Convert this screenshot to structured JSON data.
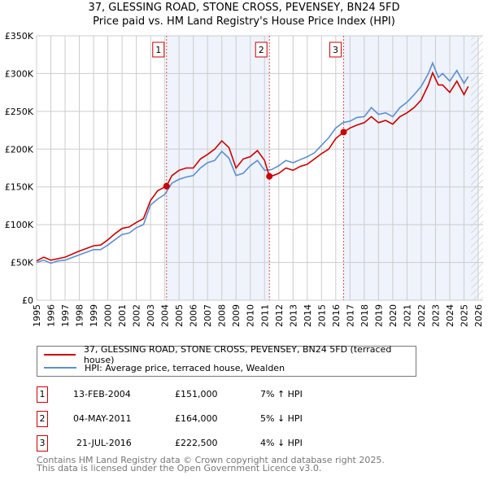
{
  "chart_data": {
    "type": "line",
    "title": "37, GLESSING ROAD, STONE CROSS, PEVENSEY, BN24 5FD",
    "subtitle": "Price paid vs. HM Land Registry's House Price Index (HPI)",
    "xlim": [
      1995,
      2026
    ],
    "ylim": [
      0,
      350000
    ],
    "x_ticks": [
      "1995",
      "1996",
      "1997",
      "1998",
      "1999",
      "2000",
      "2001",
      "2002",
      "2003",
      "2004",
      "2005",
      "2006",
      "2007",
      "2008",
      "2009",
      "2010",
      "2011",
      "2012",
      "2013",
      "2014",
      "2015",
      "2016",
      "2017",
      "2018",
      "2019",
      "2020",
      "2021",
      "2022",
      "2023",
      "2024",
      "2025",
      "2026"
    ],
    "y_ticks": [
      {
        "v": 0,
        "label": "£0"
      },
      {
        "v": 50000,
        "label": "£50K"
      },
      {
        "v": 100000,
        "label": "£100K"
      },
      {
        "v": 150000,
        "label": "£150K"
      },
      {
        "v": 200000,
        "label": "£200K"
      },
      {
        "v": 250000,
        "label": "£250K"
      },
      {
        "v": 300000,
        "label": "£300K"
      },
      {
        "v": 350000,
        "label": "£350K"
      }
    ],
    "grid": true,
    "series": [
      {
        "name": "37, GLESSING ROAD, STONE CROSS, PEVENSEY, BN24 5FD (terraced house)",
        "color": "#cc0000",
        "x": [
          1995,
          1995.5,
          1996,
          1997,
          1998,
          1999,
          1999.5,
          2000,
          2000.5,
          2001,
          2001.5,
          2002,
          2002.5,
          2003,
          2003.5,
          2004.12,
          2004.5,
          2005,
          2005.5,
          2006,
          2006.5,
          2007,
          2007.5,
          2008,
          2008.5,
          2009,
          2009.5,
          2010,
          2010.5,
          2011,
          2011.34,
          2011.6,
          2012,
          2012.5,
          2013,
          2013.5,
          2014,
          2014.5,
          2015,
          2015.5,
          2016,
          2016.55,
          2017,
          2017.5,
          2018,
          2018.5,
          2019,
          2019.5,
          2020,
          2020.5,
          2021,
          2021.5,
          2022,
          2022.5,
          2022.8,
          2023.2,
          2023.5,
          2024,
          2024.5,
          2025,
          2025.3
        ],
        "y": [
          52,
          57,
          53,
          57,
          65,
          72,
          73,
          80,
          88,
          95,
          97,
          103,
          108,
          132,
          145,
          151,
          165,
          172,
          175,
          175,
          187,
          193,
          200,
          211,
          202,
          175,
          187,
          190,
          198,
          185,
          164,
          165,
          168,
          175,
          172,
          177,
          180,
          187,
          194,
          200,
          214,
          222.5,
          228,
          232,
          235,
          243,
          235,
          238,
          233,
          243,
          248,
          255,
          265,
          285,
          301,
          285,
          285,
          275,
          290,
          272,
          283
        ]
      },
      {
        "name": "HPI: Average price, terraced house, Wealden",
        "color": "#5b8fd0",
        "x": [
          1995,
          1995.5,
          1996,
          1996.5,
          1997,
          1998,
          1999,
          1999.5,
          2000,
          2000.5,
          2001,
          2001.5,
          2002,
          2002.5,
          2003,
          2003.5,
          2004,
          2004.5,
          2005,
          2005.5,
          2006,
          2006.5,
          2007,
          2007.5,
          2008,
          2008.5,
          2009,
          2009.5,
          2010,
          2010.5,
          2011,
          2011.5,
          2012,
          2012.5,
          2013,
          2013.5,
          2014,
          2014.5,
          2015,
          2015.5,
          2016,
          2016.5,
          2017,
          2017.5,
          2018,
          2018.5,
          2019,
          2019.5,
          2020,
          2020.5,
          2021,
          2021.5,
          2022,
          2022.5,
          2022.8,
          2023.2,
          2023.5,
          2024,
          2024.5,
          2025,
          2025.3
        ],
        "y": [
          50,
          53,
          49,
          52,
          53,
          60,
          67,
          67,
          73,
          80,
          87,
          89,
          96,
          100,
          126,
          134,
          140,
          155,
          160,
          163,
          165,
          175,
          182,
          185,
          197,
          188,
          165,
          168,
          178,
          185,
          172,
          173,
          178,
          185,
          182,
          186,
          190,
          195,
          205,
          215,
          228,
          235,
          237,
          242,
          243,
          255,
          246,
          248,
          243,
          255,
          262,
          272,
          283,
          300,
          314,
          295,
          300,
          290,
          304,
          287,
          296
        ]
      }
    ],
    "y_unit": "thousand GBP",
    "sales": [
      {
        "n": "1",
        "x": 2004.12,
        "date": "13-FEB-2004",
        "price": "£151,000",
        "value": 151,
        "hpi": "7% ↑ HPI"
      },
      {
        "n": "2",
        "x": 2011.34,
        "date": "04-MAY-2011",
        "price": "£164,000",
        "value": 164,
        "hpi": "5% ↓ HPI"
      },
      {
        "n": "3",
        "x": 2016.55,
        "date": "21-JUL-2016",
        "price": "£222,500",
        "value": 222.5,
        "hpi": "4% ↓ HPI"
      }
    ]
  },
  "footer": {
    "line1": "Contains HM Land Registry data © Crown copyright and database right 2025.",
    "line2": "This data is licensed under the Open Government Licence v3.0."
  }
}
